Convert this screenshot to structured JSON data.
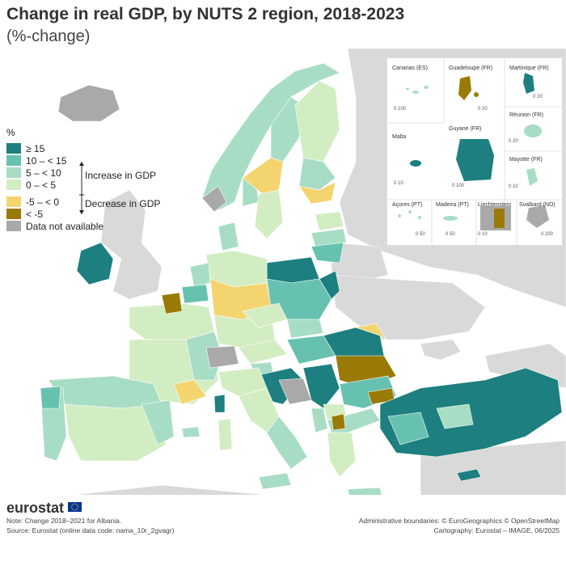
{
  "header": {
    "title": "Change in real GDP, by NUTS 2 region, 2018-2023",
    "subtitle": "(%-change)"
  },
  "legend": {
    "unit": "%",
    "items": [
      {
        "label": "≥ 15",
        "color": "#1d7f7f"
      },
      {
        "label": "10 – < 15",
        "color": "#67c1b0"
      },
      {
        "label": "5 – < 10",
        "color": "#a7ddc5"
      },
      {
        "label": "0 – < 5",
        "color": "#d3edc3"
      },
      {
        "label": "-5 – < 0",
        "color": "#f3d46f"
      },
      {
        "label": "< -5",
        "color": "#9a7a06"
      },
      {
        "label": "Data not available",
        "color": "#a9a9a9"
      }
    ],
    "increase_label": "Increase in GDP",
    "decrease_label": "Decrease in GDP"
  },
  "insets": {
    "labels": [
      "Canarias (ES)",
      "Guadeloupe (FR)",
      "Martinique (FR)",
      "Réunion (FR)",
      "Malta",
      "Guyane (FR)",
      "Mayotte (FR)",
      "Açores (PT)",
      "Madeira (PT)",
      "Liechtenstein",
      "Svalbard (NO)"
    ],
    "scales": [
      "0  100",
      "0  20",
      "0  20",
      "0  20",
      "0  10",
      "0  100",
      "0  10",
      "0  50",
      "0  50",
      "0  10",
      "0  200"
    ]
  },
  "footer": {
    "brand": "eurostat",
    "note": "Note: Change 2018–2021 for Albania.",
    "source": "Source: Eurostat (online data code: nama_10r_2gvagr)",
    "admin": "Administrative boundaries: © EuroGeographics © OpenStreetMap",
    "cartography": "Cartography: Eurostat – IMAGE, 06/2025"
  },
  "colors": {
    "non_eu_land": "#d9d9d9",
    "sea": "#ffffff",
    "no_data": "#a9a9a9"
  }
}
